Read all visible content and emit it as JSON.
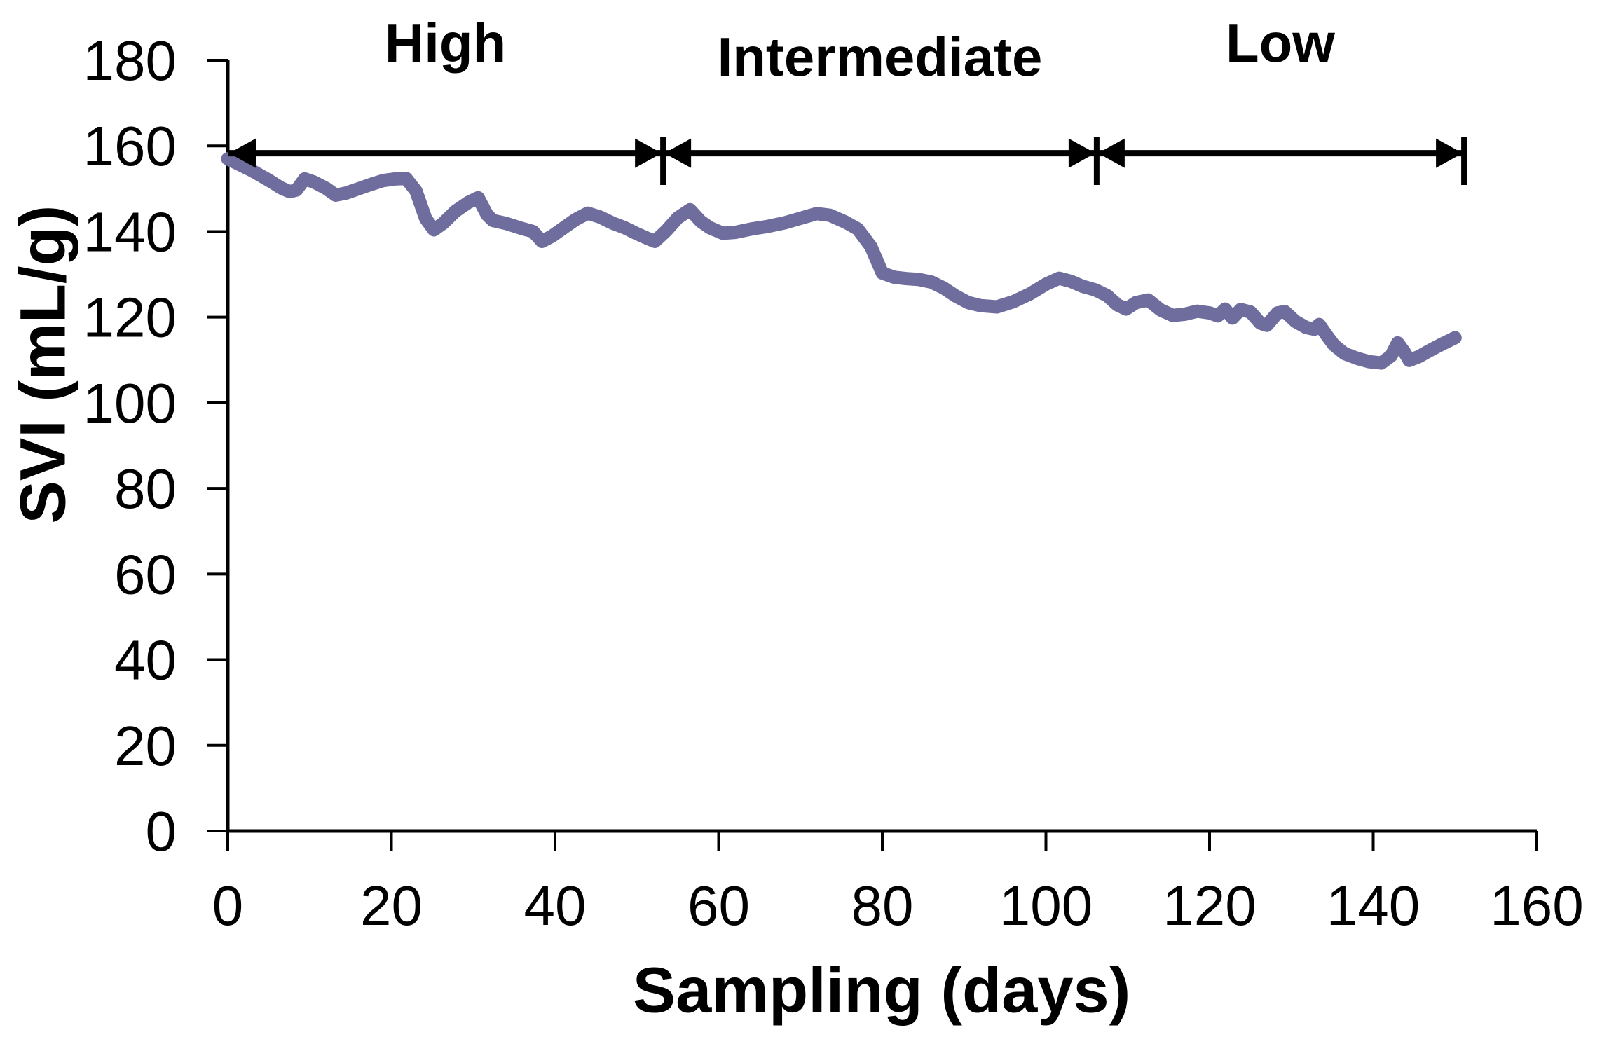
{
  "page": {
    "background": "#ffffff",
    "text_color": "#000000"
  },
  "chart_data": {
    "type": "line",
    "title": "",
    "xlabel": "Sampling (days)",
    "ylabel": "SVI (mL/g)",
    "xlim": [
      0,
      160
    ],
    "ylim": [
      0,
      180
    ],
    "xticks": [
      0,
      20,
      40,
      60,
      80,
      100,
      120,
      140,
      160
    ],
    "yticks": [
      0,
      20,
      40,
      60,
      80,
      100,
      120,
      140,
      160,
      180
    ],
    "grid": false,
    "legend": "none",
    "line_color": "#6f6d9d",
    "axis_color": "#000000",
    "region_arrow_y": 158.3,
    "regions": [
      {
        "label": "High",
        "start": 0,
        "end": 53.2
      },
      {
        "label": "Intermediate",
        "start": 53.2,
        "end": 106.2
      },
      {
        "label": "Low",
        "start": 106.2,
        "end": 151.1
      }
    ],
    "series": [
      {
        "name": "SVI",
        "color": "#6f6d9d",
        "points": [
          [
            0,
            157
          ],
          [
            1.5,
            155.6
          ],
          [
            3,
            154.2
          ],
          [
            5,
            152
          ],
          [
            6.5,
            150.2
          ],
          [
            7.6,
            149.3
          ],
          [
            8.4,
            149.7
          ],
          [
            9.4,
            152.3
          ],
          [
            10.5,
            151.6
          ],
          [
            12,
            150.1
          ],
          [
            13.2,
            148.5
          ],
          [
            14.5,
            149
          ],
          [
            16,
            150
          ],
          [
            17.5,
            151
          ],
          [
            19,
            151.9
          ],
          [
            20.5,
            152.3
          ],
          [
            21.8,
            152.4
          ],
          [
            23,
            149.5
          ],
          [
            24.2,
            143
          ],
          [
            25.2,
            140.4
          ],
          [
            26.3,
            141.9
          ],
          [
            27.8,
            144.7
          ],
          [
            29.4,
            146.8
          ],
          [
            30.6,
            147.9
          ],
          [
            31.7,
            143.9
          ],
          [
            32.4,
            142.6
          ],
          [
            34,
            141.9
          ],
          [
            36,
            140.7
          ],
          [
            37.3,
            140
          ],
          [
            38.4,
            137.7
          ],
          [
            39.6,
            138.9
          ],
          [
            41,
            140.8
          ],
          [
            42.5,
            142.8
          ],
          [
            44,
            144.3
          ],
          [
            45.5,
            143.4
          ],
          [
            47,
            142
          ],
          [
            48.5,
            140.9
          ],
          [
            50,
            139.5
          ],
          [
            51.3,
            138.4
          ],
          [
            52.2,
            137.7
          ],
          [
            53.6,
            140.2
          ],
          [
            55,
            143.2
          ],
          [
            56.5,
            145.1
          ],
          [
            57.8,
            142.4
          ],
          [
            58.9,
            140.9
          ],
          [
            60.5,
            139.6
          ],
          [
            62,
            139.8
          ],
          [
            64,
            140.6
          ],
          [
            66,
            141.2
          ],
          [
            68,
            142
          ],
          [
            70,
            143.1
          ],
          [
            72,
            144.2
          ],
          [
            73.6,
            143.8
          ],
          [
            75.5,
            142.2
          ],
          [
            77,
            140.6
          ],
          [
            78.6,
            136.5
          ],
          [
            80,
            130.3
          ],
          [
            81.5,
            129.3
          ],
          [
            83,
            129
          ],
          [
            84.5,
            128.8
          ],
          [
            86,
            128.2
          ],
          [
            87.5,
            126.8
          ],
          [
            89,
            124.9
          ],
          [
            90.5,
            123.4
          ],
          [
            92,
            122.7
          ],
          [
            94,
            122.4
          ],
          [
            96,
            123.6
          ],
          [
            98,
            125.4
          ],
          [
            100,
            127.7
          ],
          [
            101.6,
            129.1
          ],
          [
            103,
            128.4
          ],
          [
            104.5,
            127.2
          ],
          [
            106,
            126.4
          ],
          [
            107.5,
            125
          ],
          [
            108.7,
            122.9
          ],
          [
            109.8,
            121.9
          ],
          [
            111,
            123.4
          ],
          [
            112.5,
            124
          ],
          [
            114,
            121.7
          ],
          [
            115.5,
            120.4
          ],
          [
            117,
            120.7
          ],
          [
            118.5,
            121.4
          ],
          [
            120,
            121
          ],
          [
            121,
            120.3
          ],
          [
            121.9,
            121.9
          ],
          [
            122.8,
            119.8
          ],
          [
            123.8,
            121.8
          ],
          [
            125,
            121.2
          ],
          [
            126.2,
            118.6
          ],
          [
            127,
            118.1
          ],
          [
            128.3,
            121
          ],
          [
            129.2,
            121.3
          ],
          [
            130.5,
            119
          ],
          [
            131.8,
            117.6
          ],
          [
            132.8,
            117.2
          ],
          [
            133.4,
            118.3
          ],
          [
            134.3,
            115.8
          ],
          [
            135.2,
            113.5
          ],
          [
            136.5,
            111.5
          ],
          [
            138,
            110.4
          ],
          [
            139.5,
            109.6
          ],
          [
            141,
            109.3
          ],
          [
            142.2,
            111
          ],
          [
            143,
            114
          ],
          [
            143.8,
            111.9
          ],
          [
            144.4,
            109.9
          ],
          [
            145.6,
            110.8
          ],
          [
            147,
            112.3
          ],
          [
            148.5,
            113.8
          ],
          [
            150,
            115.2
          ]
        ]
      }
    ]
  }
}
